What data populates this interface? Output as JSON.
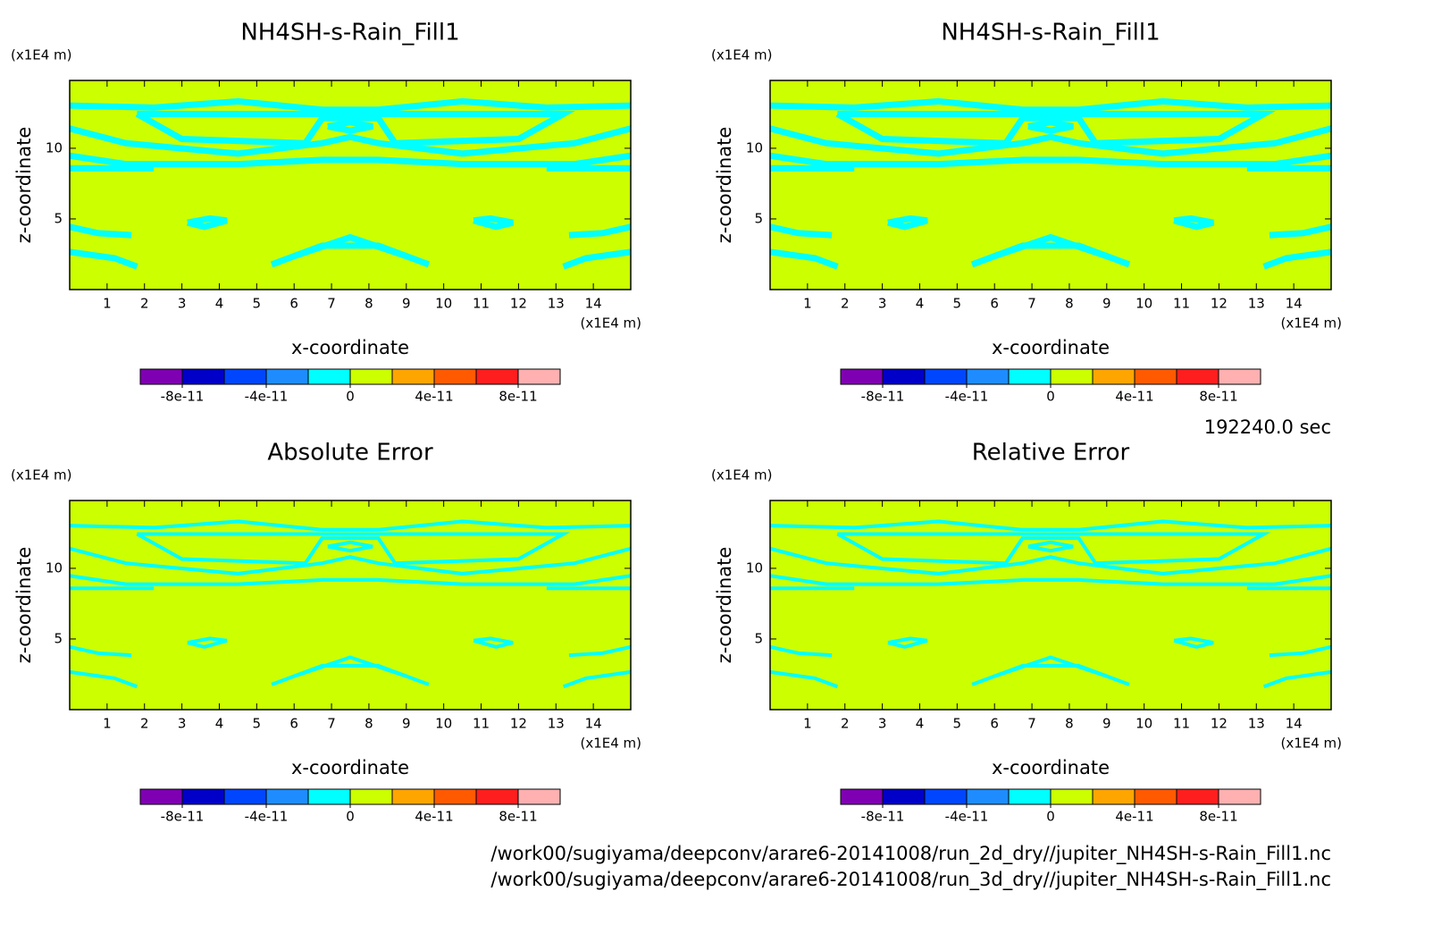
{
  "chart_data": [
    {
      "type": "contour",
      "title": "NH4SH-s-Rain_Fill1",
      "xlabel": "x-coordinate",
      "ylabel": "z-coordinate",
      "x_unit": "(x1E4 m)",
      "y_unit": "(x1E4 m)",
      "xlim": [
        0,
        15
      ],
      "xticks": [
        1,
        2,
        3,
        4,
        5,
        6,
        7,
        8,
        9,
        10,
        11,
        12,
        13,
        14
      ],
      "ylim": [
        0,
        14.8
      ],
      "yticks": [
        5,
        10
      ],
      "colorbar": {
        "levels": [
          -1e-10,
          -8e-11,
          -6e-11,
          -4e-11,
          -2e-11,
          0,
          2e-11,
          4e-11,
          6e-11,
          8e-11,
          1e-10
        ],
        "colors": [
          "#7f00b2",
          "#0000c8",
          "#0046ff",
          "#1e8cff",
          "#00ffff",
          "#ccff00",
          "#ffa500",
          "#ff5a00",
          "#ff1e1e",
          "#ffb0b0"
        ],
        "ticks": [
          -8e-11,
          -4e-11,
          0,
          4e-11,
          8e-11
        ]
      }
    },
    {
      "type": "contour",
      "title": "NH4SH-s-Rain_Fill1",
      "xlabel": "x-coordinate",
      "ylabel": "z-coordinate",
      "x_unit": "(x1E4 m)",
      "y_unit": "(x1E4 m)",
      "xlim": [
        0,
        15
      ],
      "xticks": [
        1,
        2,
        3,
        4,
        5,
        6,
        7,
        8,
        9,
        10,
        11,
        12,
        13,
        14
      ],
      "ylim": [
        0,
        14.8
      ],
      "yticks": [
        5,
        10
      ],
      "colorbar": {
        "levels": [
          -1e-10,
          -8e-11,
          -6e-11,
          -4e-11,
          -2e-11,
          0,
          2e-11,
          4e-11,
          6e-11,
          8e-11,
          1e-10
        ],
        "colors": [
          "#7f00b2",
          "#0000c8",
          "#0046ff",
          "#1e8cff",
          "#00ffff",
          "#ccff00",
          "#ffa500",
          "#ff5a00",
          "#ff1e1e",
          "#ffb0b0"
        ],
        "ticks": [
          -8e-11,
          -4e-11,
          0,
          4e-11,
          8e-11
        ]
      }
    },
    {
      "type": "contour",
      "title": "Absolute Error",
      "xlabel": "x-coordinate",
      "ylabel": "z-coordinate",
      "x_unit": "(x1E4 m)",
      "y_unit": "(x1E4 m)",
      "xlim": [
        0,
        15
      ],
      "xticks": [
        1,
        2,
        3,
        4,
        5,
        6,
        7,
        8,
        9,
        10,
        11,
        12,
        13,
        14
      ],
      "ylim": [
        0,
        14.8
      ],
      "yticks": [
        5,
        10
      ],
      "colorbar": {
        "levels": [
          -1e-10,
          -8e-11,
          -6e-11,
          -4e-11,
          -2e-11,
          0,
          2e-11,
          4e-11,
          6e-11,
          8e-11,
          1e-10
        ],
        "colors": [
          "#7f00b2",
          "#0000c8",
          "#0046ff",
          "#1e8cff",
          "#00ffff",
          "#ccff00",
          "#ffa500",
          "#ff5a00",
          "#ff1e1e",
          "#ffb0b0"
        ],
        "ticks": [
          -8e-11,
          -4e-11,
          0,
          4e-11,
          8e-11
        ]
      }
    },
    {
      "type": "contour",
      "title": "Relative Error",
      "xlabel": "x-coordinate",
      "ylabel": "z-coordinate",
      "x_unit": "(x1E4 m)",
      "y_unit": "(x1E4 m)",
      "xlim": [
        0,
        15
      ],
      "xticks": [
        1,
        2,
        3,
        4,
        5,
        6,
        7,
        8,
        9,
        10,
        11,
        12,
        13,
        14
      ],
      "ylim": [
        0,
        14.8
      ],
      "yticks": [
        5,
        10
      ],
      "colorbar": {
        "levels": [
          -1e-10,
          -8e-11,
          -6e-11,
          -4e-11,
          -2e-11,
          0,
          2e-11,
          4e-11,
          6e-11,
          8e-11,
          1e-10
        ],
        "colors": [
          "#7f00b2",
          "#0000c8",
          "#0046ff",
          "#1e8cff",
          "#00ffff",
          "#ccff00",
          "#ffa500",
          "#ff5a00",
          "#ff1e1e",
          "#ffb0b0"
        ],
        "ticks": [
          -8e-11,
          -4e-11,
          0,
          4e-11,
          8e-11
        ]
      }
    }
  ],
  "footer": {
    "time": "192240.0 sec",
    "files": [
      "/work00/sugiyama/deepconv/arare6-20141008/run_2d_dry//jupiter_NH4SH-s-Rain_Fill1.nc",
      "/work00/sugiyama/deepconv/arare6-20141008/run_3d_dry//jupiter_NH4SH-s-Rain_Fill1.nc"
    ]
  }
}
